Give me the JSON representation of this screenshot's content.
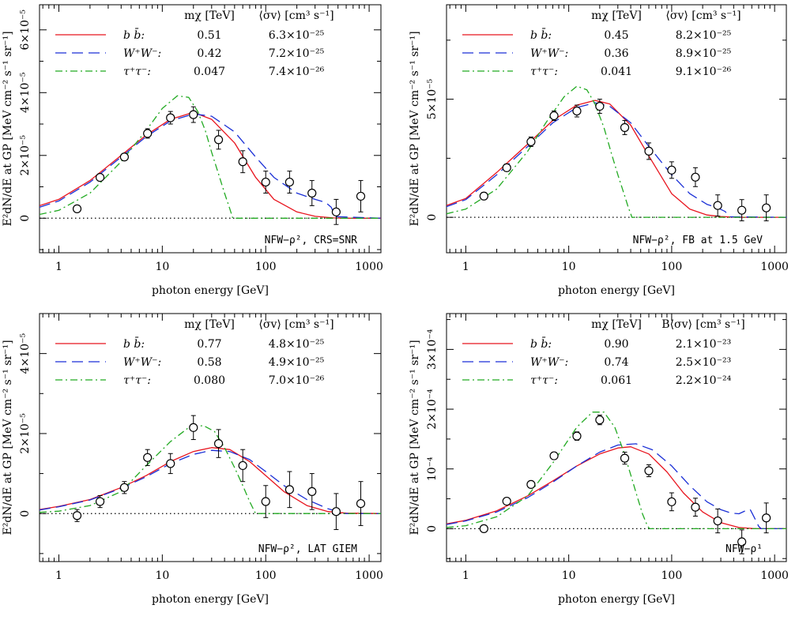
{
  "figure": {
    "xlabel": "photon energy [GeV]",
    "ylabel": "E²dN/dE at GP [MeV cm⁻² s⁻¹ sr⁻¹]",
    "legend_mass_header": "mχ [TeV]",
    "channels": [
      "b b̄:",
      "W⁺W⁻:",
      "τ⁺τ⁻:"
    ],
    "colors": {
      "bb": "#e8141e",
      "ww": "#1a2fd6",
      "tt": "#22aa22",
      "data": "#000000"
    }
  },
  "chart_data": [
    {
      "type": "line",
      "panel": "top-left",
      "xlabel": "photon energy [GeV]",
      "ylabel": "E²dN/dE at GP [MeV cm⁻² s⁻¹ sr⁻¹]",
      "xscale": "log",
      "xlim": [
        0.65,
        1300
      ],
      "ylim": [
        -1.1e-05,
        6.8e-05
      ],
      "x_ticks": [
        "1",
        "10",
        "100",
        "1000"
      ],
      "y_ticks": [
        {
          "value": 0,
          "label": "0"
        },
        {
          "value": 2e-05,
          "label": "2×10⁻⁵"
        },
        {
          "value": 4e-05,
          "label": "4×10⁻⁵"
        },
        {
          "value": 6e-05,
          "label": "6×10⁻⁵"
        }
      ],
      "annotation": "NFW−ρ², CRS=SNR",
      "sigma_header": "⟨σv⟩ [cm³ s⁻¹]",
      "legend": [
        {
          "channel": "b b̄:",
          "mass": "0.51",
          "sigma": "6.3×10⁻²⁵"
        },
        {
          "channel": "W⁺W⁻:",
          "mass": "0.42",
          "sigma": "7.2×10⁻²⁵"
        },
        {
          "channel": "τ⁺τ⁻:",
          "mass": "0.047",
          "sigma": "7.4×10⁻²⁶"
        }
      ],
      "data": {
        "x": [
          1.5,
          2.5,
          4.3,
          7.2,
          12,
          20,
          35,
          60,
          100,
          170,
          280,
          480,
          830
        ],
        "y": [
          3e-06,
          1.3e-05,
          1.95e-05,
          2.7e-05,
          3.2e-05,
          3.3e-05,
          2.5e-05,
          1.8e-05,
          1.15e-05,
          1.15e-05,
          8e-06,
          2e-06,
          7e-06
        ],
        "yerr": [
          1e-06,
          1e-06,
          1e-06,
          1.5e-06,
          2e-06,
          2.5e-06,
          3e-06,
          3.5e-06,
          3.5e-06,
          3.5e-06,
          4e-06,
          4e-06,
          5e-06
        ]
      },
      "series": [
        {
          "key": "bb",
          "x": [
            0.65,
            1,
            2,
            4,
            7,
            12,
            20,
            30,
            50,
            80,
            120,
            200,
            300,
            450,
            600,
            1300
          ],
          "y": [
            4e-06,
            6e-06,
            1.2e-05,
            2e-05,
            2.65e-05,
            3.15e-05,
            3.37e-05,
            3.15e-05,
            2.4e-05,
            1.3e-05,
            6e-06,
            2e-06,
            6e-07,
            1e-07,
            0,
            0
          ]
        },
        {
          "key": "ww",
          "x": [
            0.65,
            1,
            2,
            4,
            7,
            12,
            20,
            30,
            50,
            80,
            120,
            200,
            300,
            380,
            430,
            470,
            1300
          ],
          "y": [
            3.5e-06,
            5.5e-06,
            1.15e-05,
            1.95e-05,
            2.6e-05,
            3.1e-05,
            3.32e-05,
            3.25e-05,
            2.75e-05,
            1.95e-05,
            1.3e-05,
            8e-06,
            6e-06,
            5e-06,
            3.5e-06,
            5e-07,
            0
          ]
        },
        {
          "key": "tt",
          "x": [
            0.65,
            1,
            2,
            4,
            7,
            10,
            14,
            18,
            22,
            26,
            30,
            35,
            40,
            45,
            47,
            48,
            1300
          ],
          "y": [
            1.2e-06,
            2.5e-06,
            8e-06,
            1.8e-05,
            2.8e-05,
            3.5e-05,
            3.9e-05,
            3.85e-05,
            3.4e-05,
            2.8e-05,
            2.1e-05,
            1.4e-05,
            8e-06,
            3e-06,
            1e-06,
            0,
            0
          ]
        }
      ]
    },
    {
      "type": "line",
      "panel": "top-right",
      "xlabel": "photon energy [GeV]",
      "ylabel": "E²dN/dE at GP [MeV cm⁻² s⁻¹ sr⁻¹]",
      "xscale": "log",
      "xlim": [
        0.65,
        1300
      ],
      "ylim": [
        -1.5e-05,
        9e-05
      ],
      "x_ticks": [
        "1",
        "10",
        "100",
        "1000"
      ],
      "y_ticks": [
        {
          "value": 0,
          "label": "0"
        },
        {
          "value": 5e-05,
          "label": "5×10⁻⁵"
        }
      ],
      "annotation": "NFW−ρ², FB at 1.5 GeV",
      "sigma_header": "⟨σv⟩ [cm³ s⁻¹]",
      "legend": [
        {
          "channel": "b b̄:",
          "mass": "0.45",
          "sigma": "8.2×10⁻²⁵"
        },
        {
          "channel": "W⁺W⁻:",
          "mass": "0.36",
          "sigma": "8.9×10⁻²⁵"
        },
        {
          "channel": "τ⁺τ⁻:",
          "mass": "0.041",
          "sigma": "9.1×10⁻²⁶"
        }
      ],
      "data": {
        "x": [
          1.5,
          2.5,
          4.3,
          7.2,
          12,
          20,
          35,
          60,
          100,
          170,
          280,
          480,
          830
        ],
        "y": [
          9e-06,
          2.1e-05,
          3.2e-05,
          4.3e-05,
          4.5e-05,
          4.7e-05,
          3.8e-05,
          2.8e-05,
          2e-05,
          1.7e-05,
          5e-06,
          3e-06,
          4e-06
        ],
        "yerr": [
          1.5e-06,
          1.5e-06,
          2e-06,
          2e-06,
          2.5e-06,
          3e-06,
          3e-06,
          3.5e-06,
          3.5e-06,
          4e-06,
          4.5e-06,
          4.5e-06,
          5.5e-06
        ]
      },
      "series": [
        {
          "key": "bb",
          "x": [
            0.65,
            1,
            2,
            4,
            7,
            12,
            18,
            25,
            40,
            60,
            100,
            150,
            220,
            300,
            450,
            1300
          ],
          "y": [
            5e-06,
            8e-06,
            1.9e-05,
            3.1e-05,
            4.1e-05,
            4.75e-05,
            4.95e-05,
            4.8e-05,
            3.9e-05,
            2.6e-05,
            1e-05,
            3.5e-06,
            1e-06,
            3e-07,
            0,
            0
          ]
        },
        {
          "key": "ww",
          "x": [
            0.65,
            1,
            2,
            4,
            7,
            12,
            18,
            25,
            40,
            60,
            100,
            150,
            220,
            280,
            330,
            370,
            1300
          ],
          "y": [
            4.5e-06,
            7.5e-06,
            1.8e-05,
            3e-05,
            4e-05,
            4.65e-05,
            4.85e-05,
            4.7e-05,
            4e-05,
            3e-05,
            1.8e-05,
            1e-05,
            5.5e-06,
            4e-06,
            2.5e-06,
            2e-07,
            0
          ]
        },
        {
          "key": "tt",
          "x": [
            0.65,
            1,
            2,
            4,
            6,
            9,
            12,
            15,
            18,
            22,
            26,
            30,
            35,
            38,
            40,
            41,
            1300
          ],
          "y": [
            1.5e-06,
            3.5e-06,
            1.2e-05,
            2.8e-05,
            4e-05,
            5.1e-05,
            5.55e-05,
            5.4e-05,
            4.8e-05,
            3.8e-05,
            2.7e-05,
            1.8e-05,
            9e-06,
            4e-06,
            1.5e-06,
            0,
            0
          ]
        }
      ]
    },
    {
      "type": "line",
      "panel": "bottom-left",
      "xlabel": "photon energy [GeV]",
      "ylabel": "E²dN/dE at GP [MeV cm⁻² s⁻¹ sr⁻¹]",
      "xscale": "log",
      "xlim": [
        0.65,
        1300
      ],
      "ylim": [
        -1.2e-05,
        5e-05
      ],
      "x_ticks": [
        "1",
        "10",
        "100",
        "1000"
      ],
      "y_ticks": [
        {
          "value": 0,
          "label": "0"
        },
        {
          "value": 2e-05,
          "label": "2×10⁻⁵"
        },
        {
          "value": 4e-05,
          "label": "4×10⁻⁵"
        }
      ],
      "annotation": "NFW−ρ², LAT GIEM",
      "sigma_header": "⟨σv⟩ [cm³ s⁻¹]",
      "legend": [
        {
          "channel": "b b̄:",
          "mass": "0.77",
          "sigma": "4.8×10⁻²⁵"
        },
        {
          "channel": "W⁺W⁻:",
          "mass": "0.58",
          "sigma": "4.9×10⁻²⁵"
        },
        {
          "channel": "τ⁺τ⁻:",
          "mass": "0.080",
          "sigma": "7.0×10⁻²⁶"
        }
      ],
      "data": {
        "x": [
          1.5,
          2.5,
          4.3,
          7.2,
          12,
          20,
          35,
          60,
          100,
          170,
          280,
          480,
          830
        ],
        "y": [
          -5e-07,
          3e-06,
          6.5e-06,
          1.4e-05,
          1.25e-05,
          2.15e-05,
          1.75e-05,
          1.2e-05,
          3e-06,
          6e-06,
          5.5e-06,
          5e-07,
          2.5e-06
        ],
        "yerr": [
          1.5e-06,
          1.5e-06,
          1.5e-06,
          2e-06,
          2.5e-06,
          3e-06,
          3.5e-06,
          4e-06,
          4e-06,
          4.5e-06,
          4.5e-06,
          4.5e-06,
          5.5e-06
        ]
      },
      "series": [
        {
          "key": "bb",
          "x": [
            0.65,
            1,
            2,
            4,
            7,
            12,
            20,
            30,
            45,
            70,
            100,
            150,
            250,
            400,
            600,
            1300
          ],
          "y": [
            1e-06,
            1.8e-06,
            3.5e-06,
            6.5e-06,
            9.5e-06,
            1.3e-05,
            1.55e-05,
            1.65e-05,
            1.6e-05,
            1.3e-05,
            9.5e-06,
            5.5e-06,
            2e-06,
            5e-07,
            1e-07,
            0
          ]
        },
        {
          "key": "ww",
          "x": [
            0.65,
            1,
            2,
            4,
            7,
            12,
            20,
            30,
            45,
            70,
            100,
            150,
            250,
            400,
            500,
            580,
            1300
          ],
          "y": [
            9e-07,
            1.7e-06,
            3.4e-06,
            6.3e-06,
            9.2e-06,
            1.25e-05,
            1.48e-05,
            1.58e-05,
            1.55e-05,
            1.35e-05,
            1.05e-05,
            7e-06,
            3.5e-06,
            1.2e-06,
            5e-07,
            0,
            0
          ]
        },
        {
          "key": "tt",
          "x": [
            0.65,
            1,
            2,
            4,
            7,
            12,
            18,
            25,
            32,
            40,
            50,
            60,
            70,
            78,
            80,
            1300
          ],
          "y": [
            3e-07,
            6e-07,
            2e-06,
            5.5e-06,
            1.2e-05,
            1.8e-05,
            2.15e-05,
            2.2e-05,
            2.05e-05,
            1.65e-05,
            1.15e-05,
            7e-06,
            3e-06,
            5e-07,
            0,
            0
          ]
        }
      ]
    },
    {
      "type": "line",
      "panel": "bottom-right",
      "xlabel": "photon energy [GeV]",
      "ylabel": "E²dN/dE at GP [MeV cm⁻² s⁻¹ sr⁻¹]",
      "xscale": "log",
      "xlim": [
        0.65,
        1300
      ],
      "ylim": [
        -5.5e-05,
        0.00036
      ],
      "x_ticks": [
        "1",
        "10",
        "100",
        "1000"
      ],
      "y_ticks": [
        {
          "value": 0,
          "label": "0"
        },
        {
          "value": 0.0001,
          "label": "10⁻⁴"
        },
        {
          "value": 0.0002,
          "label": "2×10⁻⁴"
        },
        {
          "value": 0.0003,
          "label": "3×10⁻⁴"
        }
      ],
      "annotation": "NFW−ρ¹",
      "sigma_header": "B⟨σv⟩ [cm³ s⁻¹]",
      "legend": [
        {
          "channel": "b b̄:",
          "mass": "0.90",
          "sigma": "2.1×10⁻²³"
        },
        {
          "channel": "W⁺W⁻:",
          "mass": "0.74",
          "sigma": "2.5×10⁻²³"
        },
        {
          "channel": "τ⁺τ⁻:",
          "mass": "0.061",
          "sigma": "2.2×10⁻²⁴"
        }
      ],
      "data": {
        "x": [
          1.5,
          2.5,
          4.3,
          7.2,
          12,
          20,
          35,
          60,
          100,
          170,
          280,
          480,
          830
        ],
        "y": [
          0.0,
          4.6e-05,
          7.4e-05,
          0.000122,
          0.000155,
          0.000182,
          0.000118,
          9.7e-05,
          4.5e-05,
          3.6e-05,
          1.3e-05,
          -2.2e-05,
          1.8e-05
        ],
        "yerr": [
          3e-06,
          4e-06,
          5e-06,
          6e-06,
          7e-06,
          8e-06,
          1e-05,
          1e-05,
          1.5e-05,
          1.5e-05,
          2e-05,
          2e-05,
          2.5e-05
        ]
      },
      "series": [
        {
          "key": "bb",
          "x": [
            0.65,
            1,
            2,
            4,
            7,
            12,
            20,
            30,
            40,
            60,
            90,
            130,
            200,
            300,
            450,
            650,
            1300
          ],
          "y": [
            8e-06,
            1.4e-05,
            3e-05,
            5.5e-05,
            8e-05,
            0.000105,
            0.000125,
            0.000135,
            0.000137,
            0.000125,
            9.5e-05,
            6e-05,
            2.8e-05,
            1e-05,
            2e-06,
            0,
            0
          ]
        },
        {
          "key": "ww",
          "x": [
            0.65,
            1,
            2,
            4,
            7,
            12,
            20,
            30,
            45,
            65,
            100,
            150,
            220,
            300,
            380,
            450,
            520,
            580,
            630,
            700,
            740,
            1300
          ],
          "y": [
            7e-06,
            1.3e-05,
            2.8e-05,
            5.2e-05,
            7.8e-05,
            0.000105,
            0.000128,
            0.00014,
            0.000142,
            0.000132,
            0.000105,
            7.2e-05,
            4.5e-05,
            3.2e-05,
            2.6e-05,
            2.5e-05,
            3e-05,
            3.2e-05,
            2e-05,
            4e-06,
            0,
            0
          ]
        },
        {
          "key": "tt",
          "x": [
            0.65,
            1,
            2,
            4,
            7,
            12,
            17,
            22,
            28,
            34,
            40,
            46,
            52,
            58,
            61,
            1300
          ],
          "y": [
            2e-06,
            5e-06,
            2e-05,
            5.5e-05,
            0.00011,
            0.00017,
            0.000195,
            0.000195,
            0.00017,
            0.00013,
            9e-05,
            5.5e-05,
            2.5e-05,
            5e-06,
            0,
            0
          ]
        }
      ]
    }
  ]
}
